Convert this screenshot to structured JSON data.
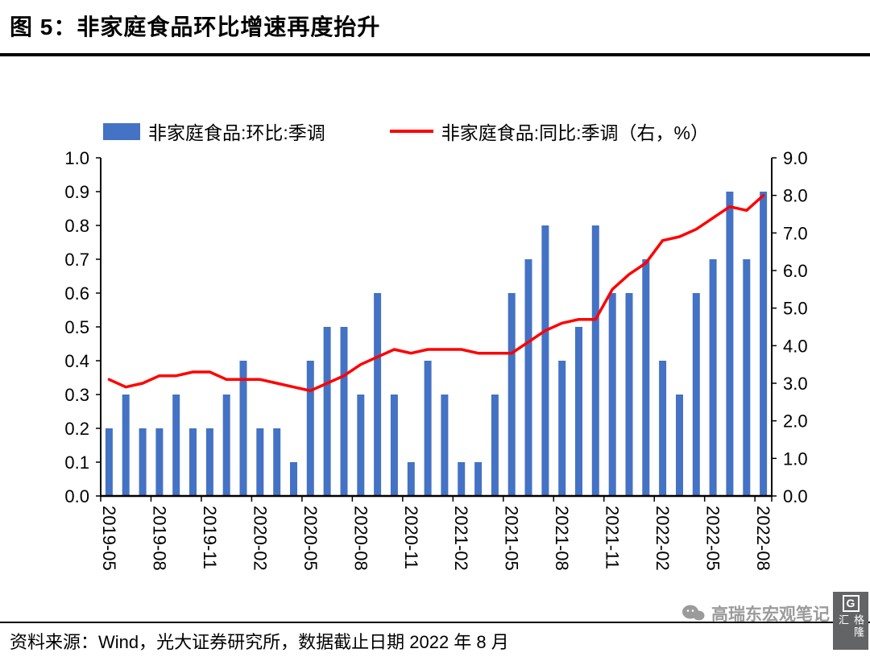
{
  "page": {
    "title": "图 5：非家庭食品环比增速再度抬升",
    "source_note": "资料来源：Wind，光大证券研究所，数据截止日期 2022 年 8 月",
    "watermark": "高瑞东宏观笔记",
    "watermark_icon": "chat-bubbles",
    "logo_g": "G",
    "logo_text": "格隆汇"
  },
  "legend": {
    "bar_label": "非家庭食品:环比:季调",
    "line_label": "非家庭食品:同比:季调（右，%）"
  },
  "chart_data": {
    "type": "bar",
    "title": "图 5：非家庭食品环比增速再度抬升",
    "x": [
      "2019-05",
      "2019-06",
      "2019-07",
      "2019-08",
      "2019-09",
      "2019-10",
      "2019-11",
      "2019-12",
      "2020-01",
      "2020-02",
      "2020-03",
      "2020-04",
      "2020-05",
      "2020-06",
      "2020-07",
      "2020-08",
      "2020-09",
      "2020-10",
      "2020-11",
      "2020-12",
      "2021-01",
      "2021-02",
      "2021-03",
      "2021-04",
      "2021-05",
      "2021-06",
      "2021-07",
      "2021-08",
      "2021-09",
      "2021-10",
      "2021-11",
      "2021-12",
      "2022-01",
      "2022-02",
      "2022-03",
      "2022-04",
      "2022-05",
      "2022-06",
      "2022-07",
      "2022-08"
    ],
    "x_label_every": 3,
    "series": [
      {
        "name": "非家庭食品:环比:季调",
        "type": "bar",
        "axis": "left",
        "color": "#4472C4",
        "values": [
          0.2,
          0.3,
          0.2,
          0.2,
          0.3,
          0.2,
          0.2,
          0.3,
          0.4,
          0.2,
          0.2,
          0.1,
          0.4,
          0.5,
          0.5,
          0.3,
          0.6,
          0.3,
          0.1,
          0.4,
          0.3,
          0.1,
          0.1,
          0.3,
          0.6,
          0.7,
          0.8,
          0.4,
          0.5,
          0.8,
          0.6,
          0.6,
          0.7,
          0.4,
          0.3,
          0.6,
          0.7,
          0.9,
          0.7,
          0.9
        ]
      },
      {
        "name": "非家庭食品:同比:季调（右，%）",
        "type": "line",
        "axis": "right",
        "color": "#FF0000",
        "values": [
          3.1,
          2.9,
          3.0,
          3.2,
          3.2,
          3.3,
          3.3,
          3.1,
          3.1,
          3.1,
          3.0,
          2.9,
          2.8,
          3.0,
          3.2,
          3.5,
          3.7,
          3.9,
          3.8,
          3.9,
          3.9,
          3.9,
          3.8,
          3.8,
          3.8,
          4.1,
          4.4,
          4.6,
          4.7,
          4.7,
          5.5,
          5.9,
          6.2,
          6.8,
          6.9,
          7.1,
          7.4,
          7.7,
          7.6,
          8.0
        ]
      }
    ],
    "left_axis": {
      "min": 0.0,
      "max": 1.0,
      "step": 0.1,
      "labels": [
        "0.0",
        "0.1",
        "0.2",
        "0.3",
        "0.4",
        "0.5",
        "0.6",
        "0.7",
        "0.8",
        "0.9",
        "1.0"
      ]
    },
    "right_axis": {
      "min": 0.0,
      "max": 9.0,
      "step": 1.0,
      "labels": [
        "0.0",
        "1.0",
        "2.0",
        "3.0",
        "4.0",
        "5.0",
        "6.0",
        "7.0",
        "8.0",
        "9.0"
      ]
    },
    "grid": false,
    "legend_position": "top"
  }
}
